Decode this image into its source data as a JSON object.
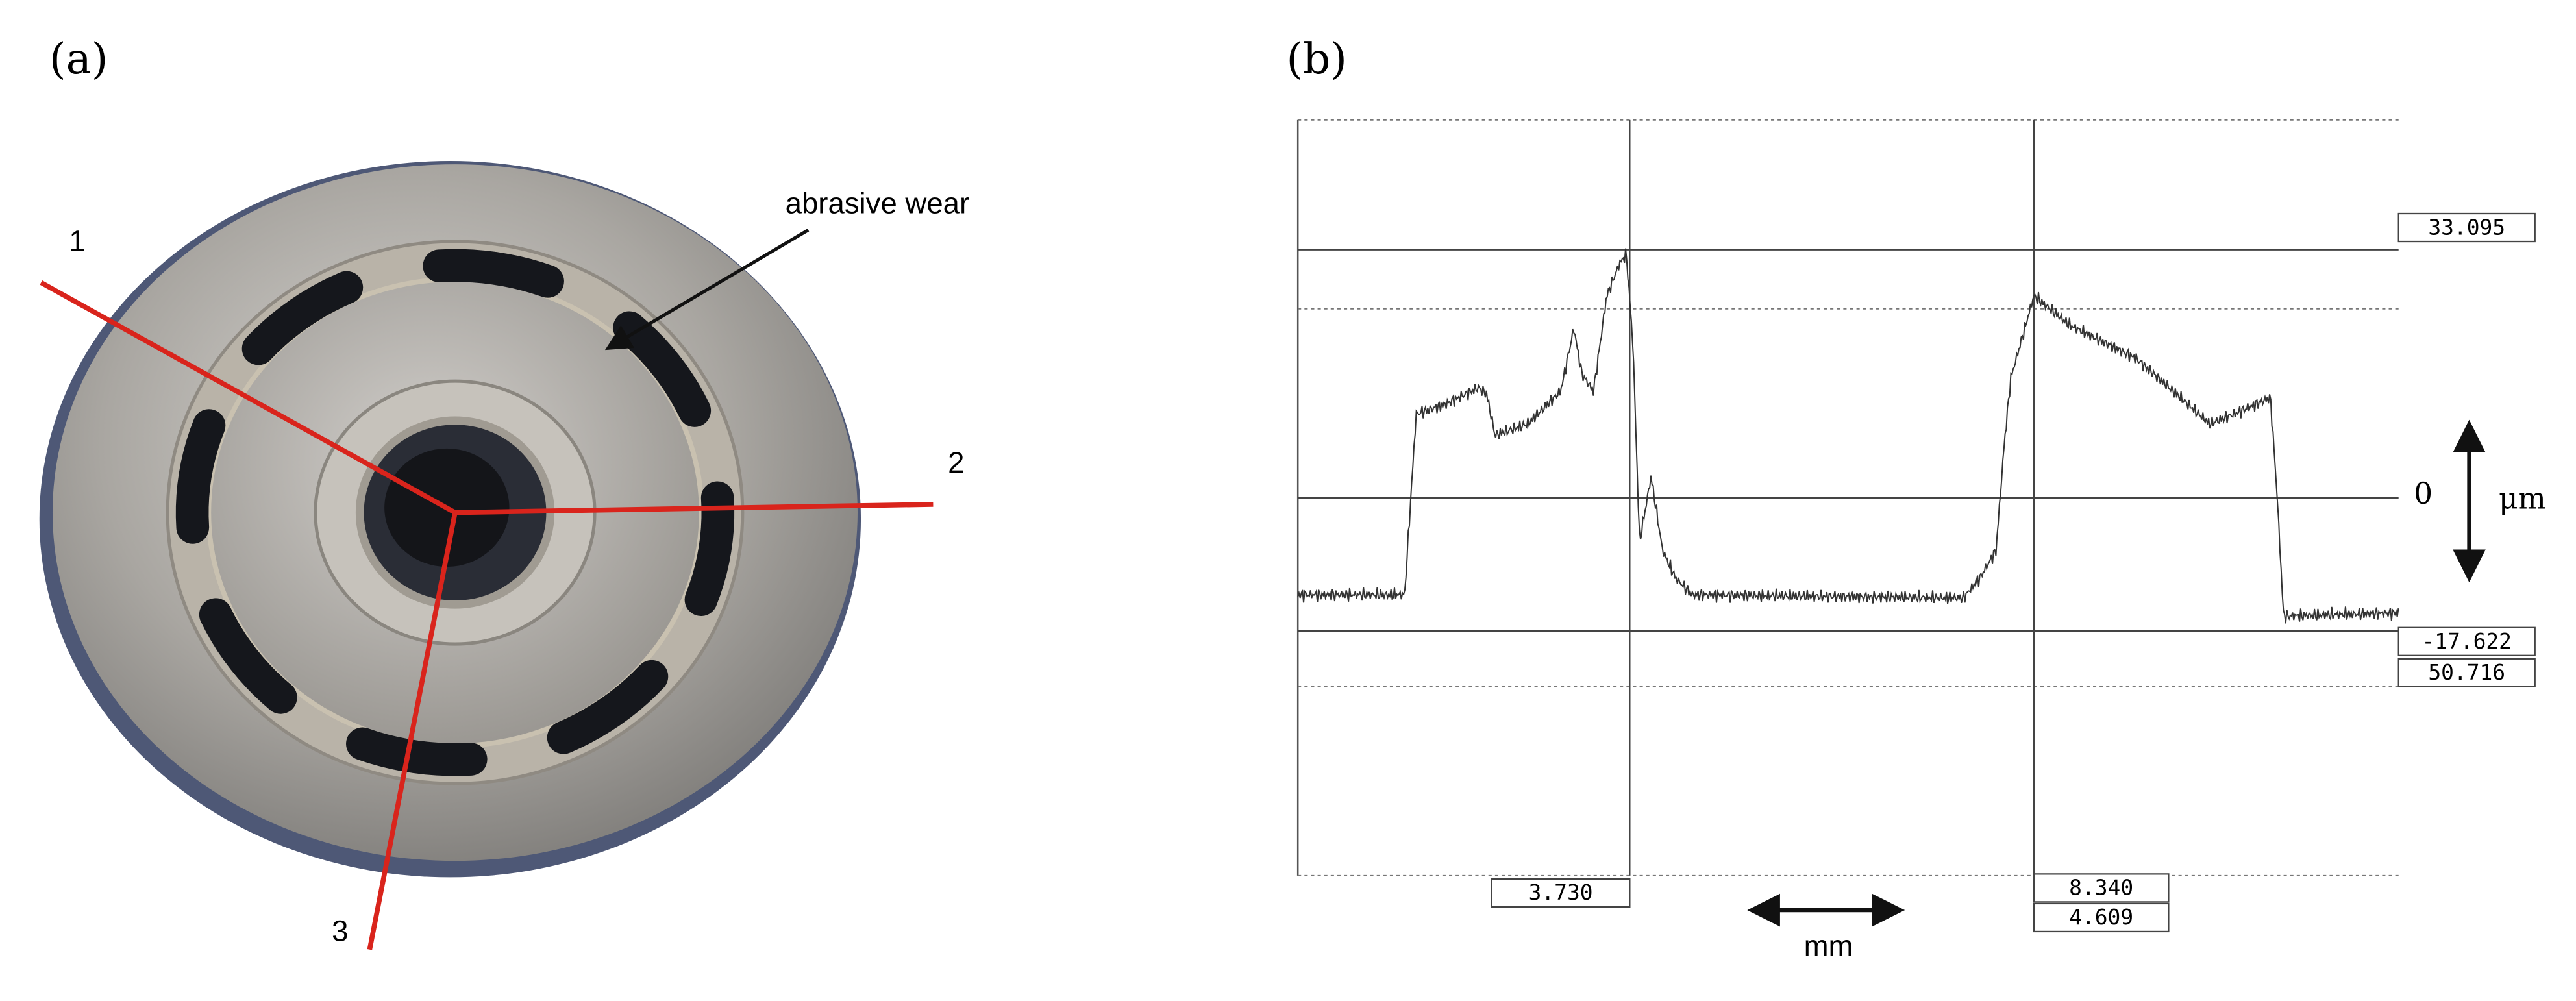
{
  "panel_a": {
    "label": "(a)",
    "markers": [
      "1",
      "2",
      "3"
    ],
    "annotation": "abrasive wear"
  },
  "panel_b": {
    "label": "(b)",
    "zero_label": "0",
    "y_unit": "μm",
    "x_unit": "mm",
    "readouts": {
      "upper": "33.095",
      "lower": "-17.622",
      "depth": "50.716",
      "left_x": "3.730",
      "right_x": "8.340",
      "width": "4.609"
    }
  }
}
